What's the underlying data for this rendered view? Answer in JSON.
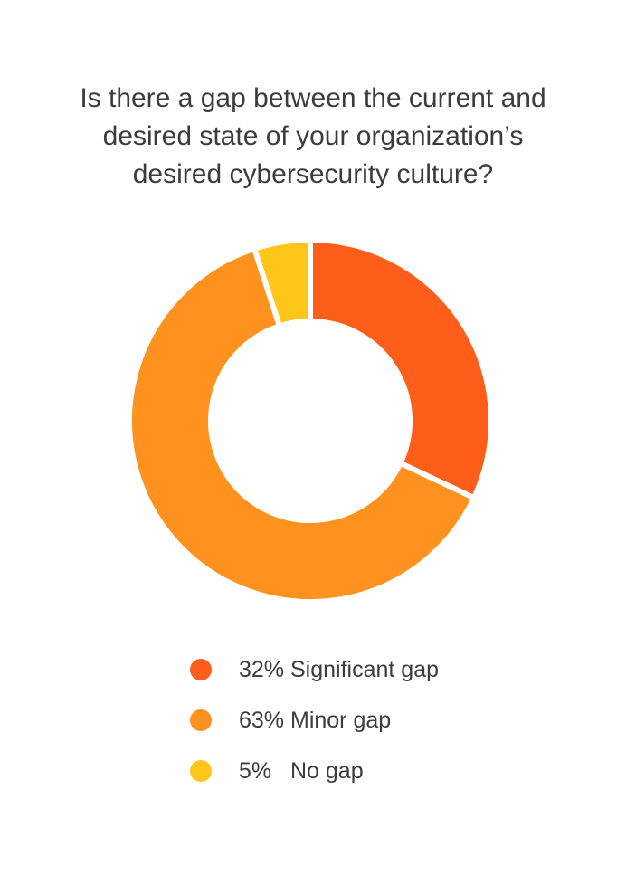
{
  "chart_data": {
    "type": "pie",
    "style": "donut",
    "title": "Is there a gap between the current and\ndesired state of your organization’s\ndesired cybersecurity culture?",
    "categories": [
      "Significant gap",
      "Minor gap",
      "No gap"
    ],
    "values": [
      32,
      63,
      5
    ],
    "value_labels": [
      "32%",
      "63%",
      "5%"
    ],
    "colors": [
      "#FF5E1A",
      "#FF921E",
      "#FFC61A"
    ],
    "legend_position": "bottom"
  }
}
